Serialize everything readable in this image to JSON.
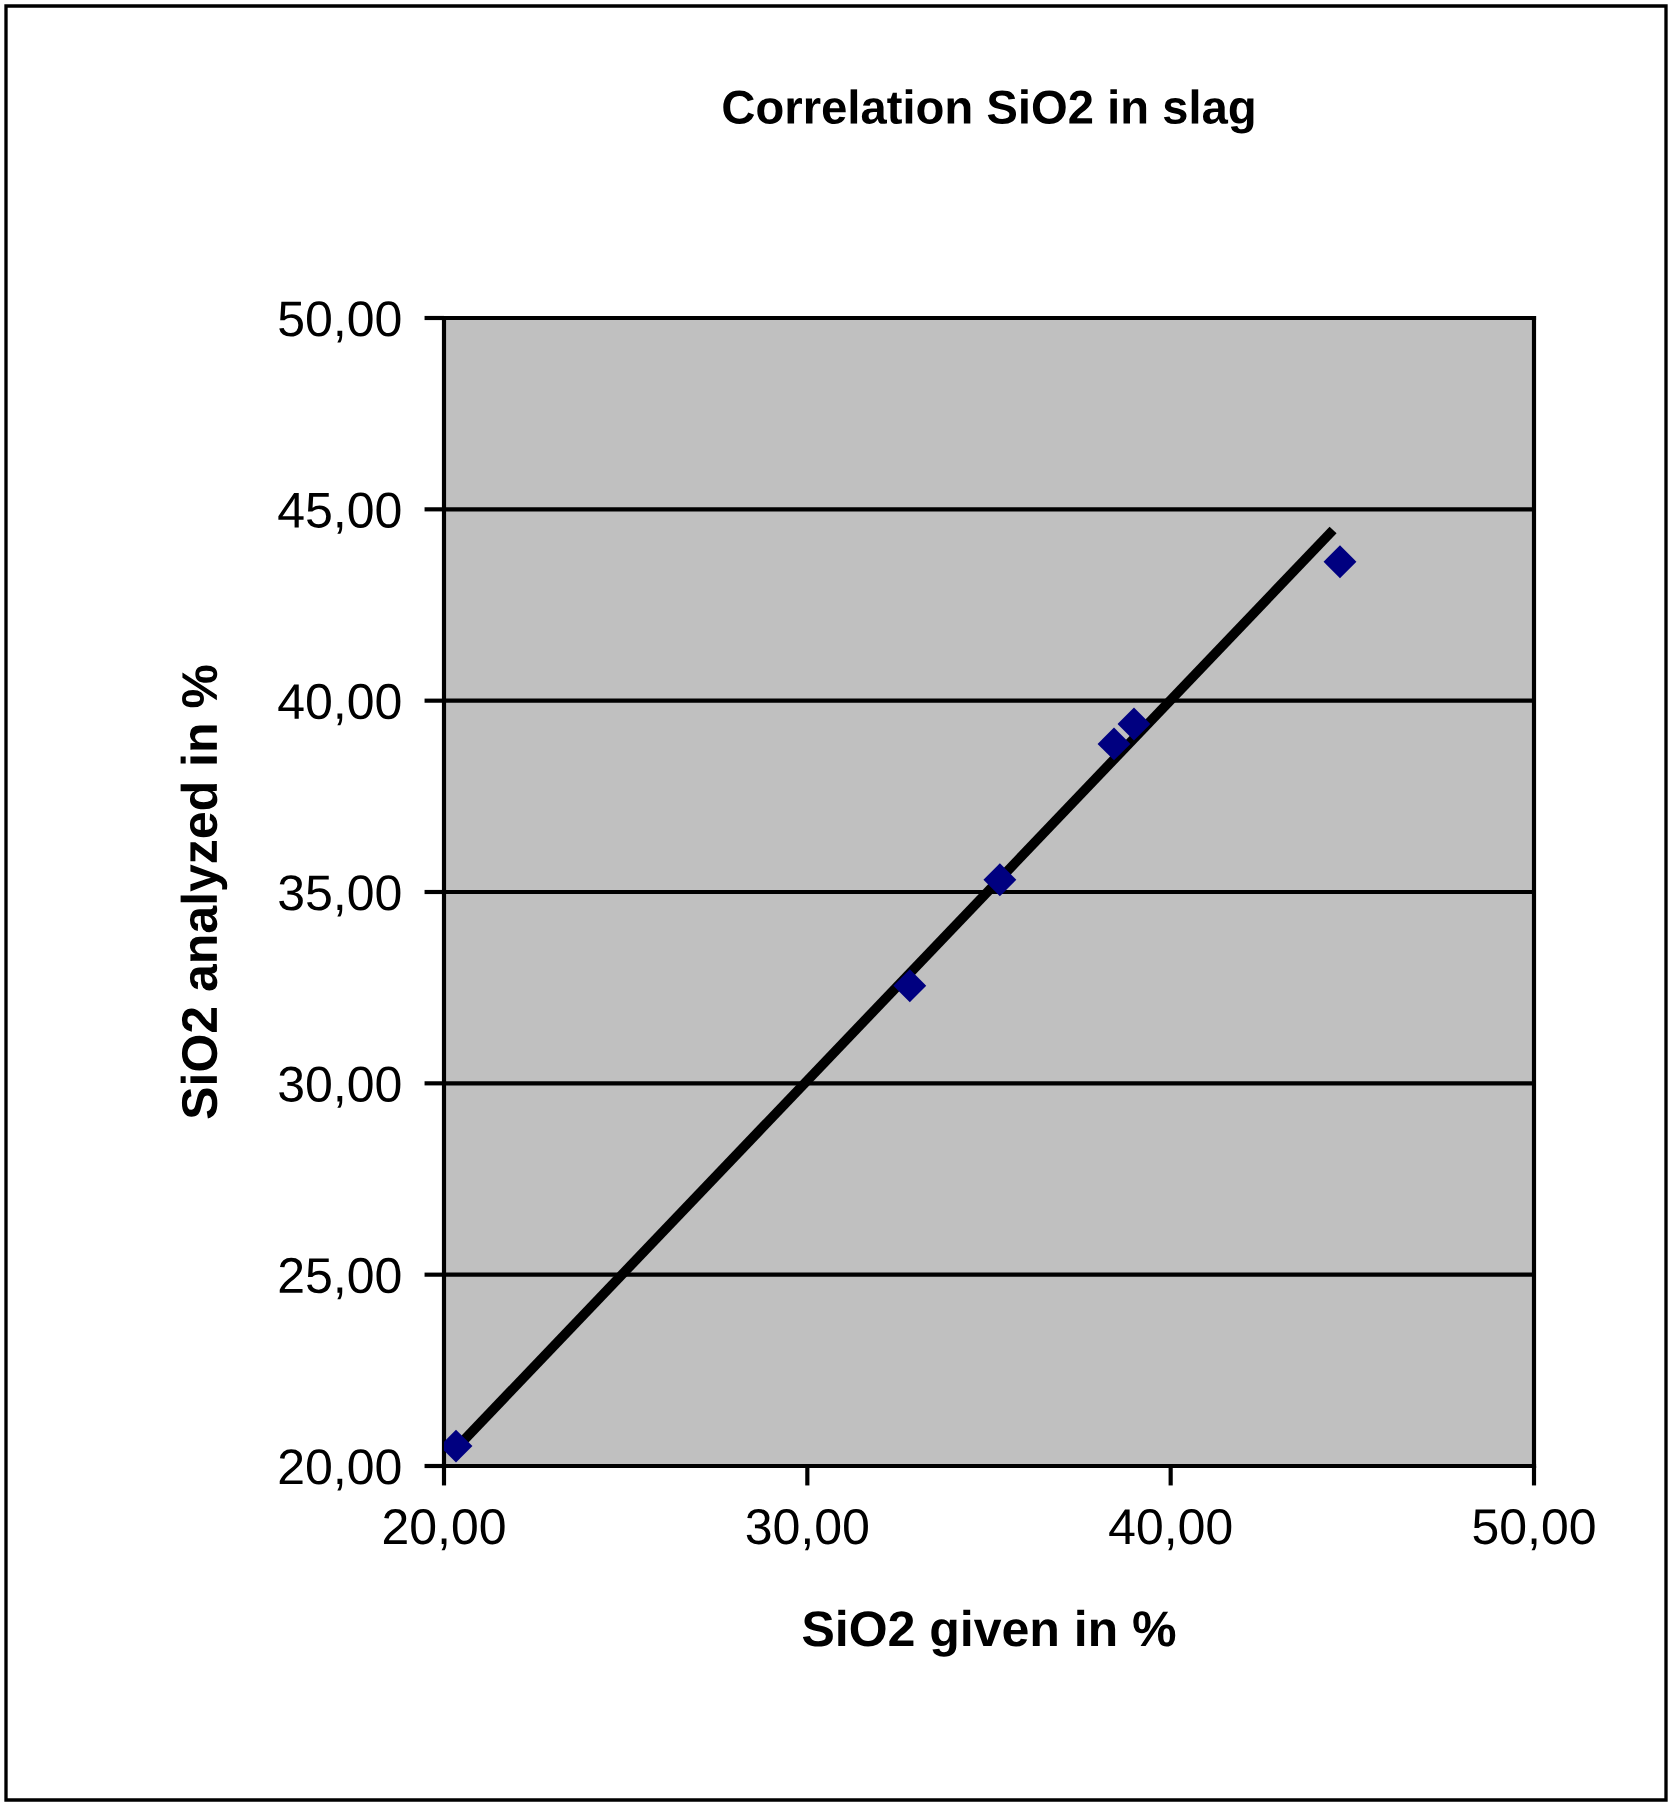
{
  "chart_data": {
    "type": "scatter",
    "title": "Correlation SiO2 in slag",
    "xlabel": "SiO2 given in %",
    "ylabel": "SiO2 analyzed in %",
    "series": [
      {
        "color": "#000080",
        "marker": "diamond",
        "x": [
          20.33,
          32.82,
          35.3,
          38.44,
          38.99,
          44.66
        ],
        "values": [
          20.52,
          32.55,
          35.32,
          38.87,
          39.39,
          43.63
        ]
      },
      {
        "type": "line",
        "color": "#000000",
        "marker": "none",
        "line_style": "solid",
        "x": [
          20.22,
          44.47
        ],
        "values": [
          20.35,
          44.46
        ]
      }
    ],
    "xlim": [
      20,
      50
    ],
    "ylim": [
      20,
      50
    ],
    "xticks": [
      {
        "value": 20,
        "label": "20,00"
      },
      {
        "value": 30,
        "label": "30,00"
      },
      {
        "value": 40,
        "label": "40,00"
      },
      {
        "value": 50,
        "label": "50,00"
      }
    ],
    "yticks": [
      {
        "value": 20,
        "label": "20,00"
      },
      {
        "value": 25,
        "label": "25,00"
      },
      {
        "value": 30,
        "label": "30,00"
      },
      {
        "value": 35,
        "label": "35,00"
      },
      {
        "value": 40,
        "label": "40,00"
      },
      {
        "value": 45,
        "label": "45,00"
      },
      {
        "value": 50,
        "label": "50,00"
      }
    ],
    "grid": "y",
    "legend": false
  }
}
